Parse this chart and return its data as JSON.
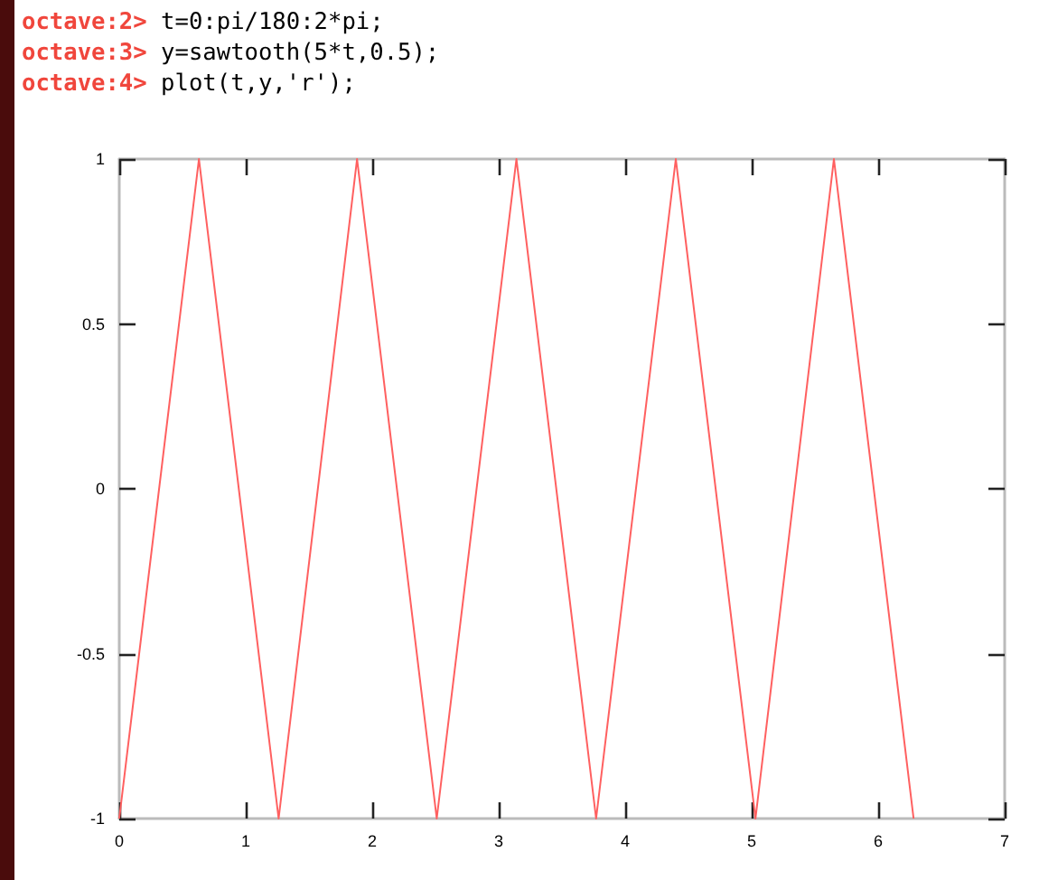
{
  "chart_data": {
    "type": "line",
    "annotations": [
      "octave:2> t=0:pi/180:2*pi;",
      "octave:3> y=sawtooth(5*t,0.5);",
      "octave:4> plot(t,y,'r');"
    ],
    "x": [
      0,
      0.63,
      1.26,
      1.88,
      2.51,
      3.14,
      3.77,
      4.4,
      5.03,
      5.65,
      6.28
    ],
    "series": [
      {
        "color": "#ff6060",
        "values": [
          -1,
          1,
          -1,
          1,
          -1,
          1,
          -1,
          1,
          -1,
          1,
          -1
        ]
      }
    ],
    "xlim": [
      0,
      7
    ],
    "xticks": [
      0,
      1,
      2,
      3,
      4,
      5,
      6,
      7
    ],
    "ylim": [
      -1,
      1
    ],
    "yticks": [
      -1,
      -0.5,
      0,
      0.5,
      1
    ],
    "grid": false,
    "marker": "none",
    "line_style": "solid"
  }
}
